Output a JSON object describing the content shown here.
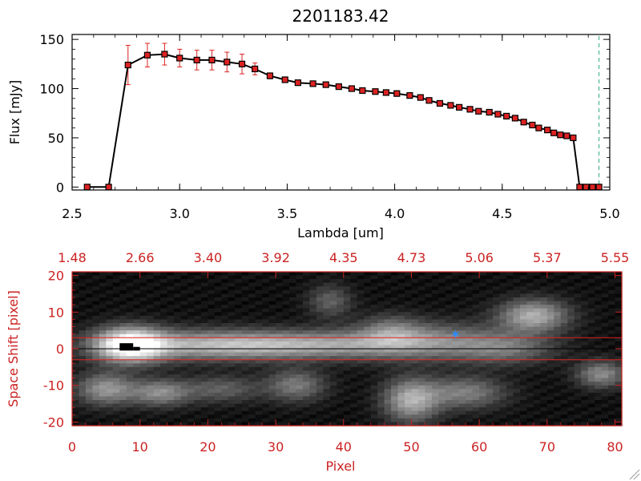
{
  "chart_data": [
    {
      "type": "line",
      "title": "2201183.42",
      "xlabel": "Lambda [um]",
      "ylabel": "Flux [mJy]",
      "xlim": [
        2.5,
        5.0
      ],
      "ylim": [
        -3,
        155
      ],
      "xticks": [
        "2.5",
        "3.0",
        "3.5",
        "4.0",
        "4.5",
        "5.0"
      ],
      "xtick_values": [
        2.5,
        3.0,
        3.5,
        4.0,
        4.5,
        5.0
      ],
      "yticks": [
        "0",
        "50",
        "100",
        "150"
      ],
      "ytick_values": [
        0,
        50,
        100,
        150
      ],
      "grid": false,
      "reference_line_x": 4.95,
      "series": [
        {
          "x": [
            2.57,
            2.67,
            2.76,
            2.85,
            2.93,
            3.0,
            3.08,
            3.15,
            3.22,
            3.29,
            3.35,
            3.42,
            3.49,
            3.55,
            3.62,
            3.68,
            3.74,
            3.8,
            3.85,
            3.91,
            3.96,
            4.01,
            4.07,
            4.12,
            4.16,
            4.21,
            4.26,
            4.3,
            4.35,
            4.39,
            4.44,
            4.48,
            4.52,
            4.56,
            4.6,
            4.64,
            4.67,
            4.71,
            4.74,
            4.77,
            4.8,
            4.83,
            4.86,
            4.89,
            4.92,
            4.95
          ],
          "y": [
            0,
            0,
            124,
            134,
            135,
            131,
            129,
            129,
            127,
            125,
            120,
            113,
            109,
            106,
            105,
            104,
            102,
            100,
            98,
            97,
            96,
            95,
            93,
            91,
            88,
            85,
            83,
            81,
            79,
            77,
            76,
            74,
            72,
            70,
            66,
            63,
            60,
            58,
            55,
            53,
            52,
            50,
            0,
            0,
            0,
            0
          ],
          "yerr": [
            0,
            0,
            20,
            12,
            11,
            9,
            10,
            10,
            10,
            10,
            6,
            3,
            2,
            2,
            2,
            2,
            2,
            2,
            2,
            2,
            2,
            2,
            2,
            2,
            2,
            2,
            2,
            2,
            2,
            2,
            2,
            2,
            2,
            2,
            2,
            2,
            2,
            2,
            2,
            2,
            2,
            2,
            0,
            0,
            0,
            0
          ]
        }
      ]
    },
    {
      "type": "heatmap",
      "xlabel": "Pixel",
      "ylabel": "Space Shift [pixel]",
      "xlim": [
        0,
        81
      ],
      "ylim": [
        -21,
        21
      ],
      "xticks": [
        "0",
        "10",
        "20",
        "30",
        "40",
        "50",
        "60",
        "70",
        "80"
      ],
      "xtick_values": [
        0,
        10,
        20,
        30,
        40,
        50,
        60,
        70,
        80
      ],
      "yticks": [
        "20",
        "10",
        "0",
        "-10",
        "-20"
      ],
      "ytick_values": [
        20,
        10,
        0,
        -10,
        -20
      ],
      "top_axis_label_values": [
        "1.48",
        "2.66",
        "3.40",
        "3.92",
        "4.35",
        "4.73",
        "5.06",
        "5.37",
        "5.55"
      ],
      "top_axis_positions": [
        0,
        10,
        20,
        30,
        40,
        50,
        60,
        70,
        80
      ],
      "extraction_window": [
        -3,
        3
      ],
      "trace_y": 0,
      "star_marker": {
        "x": 56.5,
        "y": 4
      },
      "sources": [
        {
          "x": 8.5,
          "y": 1,
          "sx": 3.5,
          "sy": 3.2,
          "amp": 1.0
        },
        {
          "x": 20,
          "y": 1,
          "sx": 10,
          "sy": 2.8,
          "amp": 0.55
        },
        {
          "x": 36,
          "y": 1,
          "sx": 10,
          "sy": 2.5,
          "amp": 0.42
        },
        {
          "x": 52,
          "y": 2,
          "sx": 8,
          "sy": 3.5,
          "amp": 0.42
        },
        {
          "x": 68,
          "y": 9,
          "sx": 3.5,
          "sy": 3,
          "amp": 0.6
        },
        {
          "x": 5,
          "y": -11,
          "sx": 3,
          "sy": 3,
          "amp": 0.5
        },
        {
          "x": 13,
          "y": -12,
          "sx": 3,
          "sy": 2.5,
          "amp": 0.45
        },
        {
          "x": 22,
          "y": -11,
          "sx": 4,
          "sy": 2.5,
          "amp": 0.28
        },
        {
          "x": 33,
          "y": -10,
          "sx": 3,
          "sy": 3,
          "amp": 0.38
        },
        {
          "x": 38,
          "y": 13,
          "sx": 2.2,
          "sy": 3,
          "amp": 0.28
        },
        {
          "x": 50,
          "y": -14,
          "sx": 2.8,
          "sy": 4,
          "amp": 0.6
        },
        {
          "x": 58,
          "y": -12,
          "sx": 4,
          "sy": 3,
          "amp": 0.4
        },
        {
          "x": 78,
          "y": -7,
          "sx": 2.5,
          "sy": 2.5,
          "amp": 0.45
        },
        {
          "x": 47,
          "y": 5,
          "sx": 3,
          "sy": 3,
          "amp": 0.25
        },
        {
          "x": 64,
          "y": 0,
          "sx": 5,
          "sy": 3,
          "amp": 0.3
        }
      ],
      "colors": {
        "axes": "#000000",
        "panel_axes": "#cc2222",
        "errorbar": "#dd2222",
        "marker_fill": "#dd2222",
        "reference": "#33aa88",
        "star": "#2a8cff",
        "window": "#dd2222"
      }
    }
  ]
}
